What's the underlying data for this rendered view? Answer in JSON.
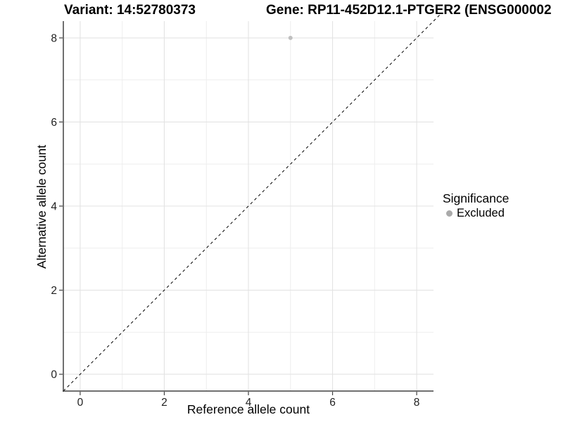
{
  "header": {
    "title_left": "Variant: 14:52780373",
    "title_right": "Gene: RP11-452D12.1-PTGER2 (ENSG000002"
  },
  "chart_data": {
    "type": "scatter",
    "title": "Variant: 14:52780373   Gene: RP11-452D12.1-PTGER2 (ENSG000002",
    "xlabel": "Reference allele count",
    "ylabel": "Alternative allele count",
    "xlim": [
      -0.4,
      8.4
    ],
    "ylim": [
      -0.4,
      8.4
    ],
    "x_ticks": [
      0,
      2,
      4,
      6,
      8
    ],
    "y_ticks": [
      0,
      2,
      4,
      6,
      8
    ],
    "x_minor": [
      1,
      3,
      5,
      7
    ],
    "y_minor": [
      1,
      3,
      5,
      7
    ],
    "grid": "major+minor",
    "reference_line": {
      "type": "identity",
      "slope": 1,
      "intercept": 0,
      "linetype": "dashed",
      "color": "#000000"
    },
    "series": [
      {
        "name": "Excluded",
        "color": "#bfbfbf",
        "point_radius": 3,
        "points": [
          [
            5,
            8
          ]
        ]
      }
    ],
    "legend": {
      "title": "Significance",
      "position": "right",
      "items": [
        {
          "label": "Excluded",
          "color": "#aaaaaa",
          "marker": "circle"
        }
      ]
    }
  },
  "colors": {
    "background": "#ffffff",
    "grid_major": "#e3e3e3",
    "grid_minor": "#eeeeee",
    "axis_line": "#404040",
    "tick_mark": "#404040",
    "tick_label": "#1f1f1f",
    "text": "#000000"
  }
}
